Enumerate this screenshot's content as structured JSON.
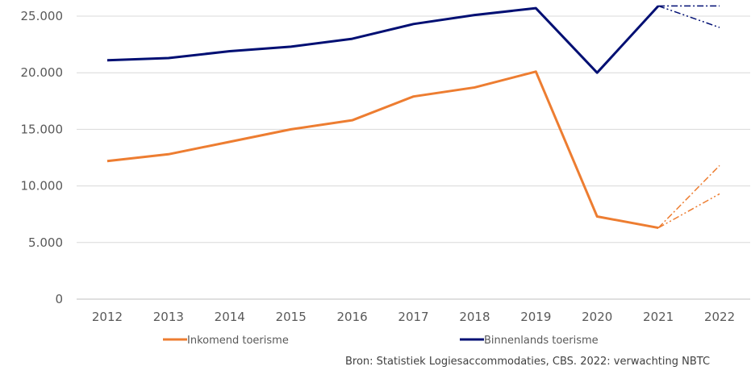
{
  "chart_data": {
    "type": "line",
    "title": "",
    "xlabel": "",
    "ylabel": "",
    "categories": [
      "2012",
      "2013",
      "2014",
      "2015",
      "2016",
      "2017",
      "2018",
      "2019",
      "2020",
      "2021",
      "2022"
    ],
    "ylim": [
      0,
      25000
    ],
    "yticks": [
      0,
      5000,
      10000,
      15000,
      20000,
      25000
    ],
    "ytick_labels": [
      "0",
      "5.000",
      "10.000",
      "15.000",
      "20.000",
      "25.000"
    ],
    "grid": true,
    "legend_position": "bottom",
    "series": [
      {
        "name": "Inkomend toerisme",
        "color": "#ED7D31",
        "values": [
          12200,
          12800,
          13900,
          15000,
          15800,
          17900,
          18700,
          20100,
          7300,
          6300,
          null
        ],
        "forecast": {
          "from": "2021",
          "to": "2022",
          "high": 11800,
          "low": 9300
        }
      },
      {
        "name": "Binnenlands toerisme",
        "color": "#000F73",
        "values": [
          21100,
          21300,
          21900,
          22300,
          23000,
          24300,
          25100,
          25700,
          20000,
          25900,
          null
        ],
        "forecast": {
          "from": "2021",
          "to": "2022",
          "high": 25900,
          "low": 24000
        }
      }
    ],
    "source_note": "Bron: Statistiek Logiesaccommodaties, CBS. 2022: verwachting NBTC"
  }
}
